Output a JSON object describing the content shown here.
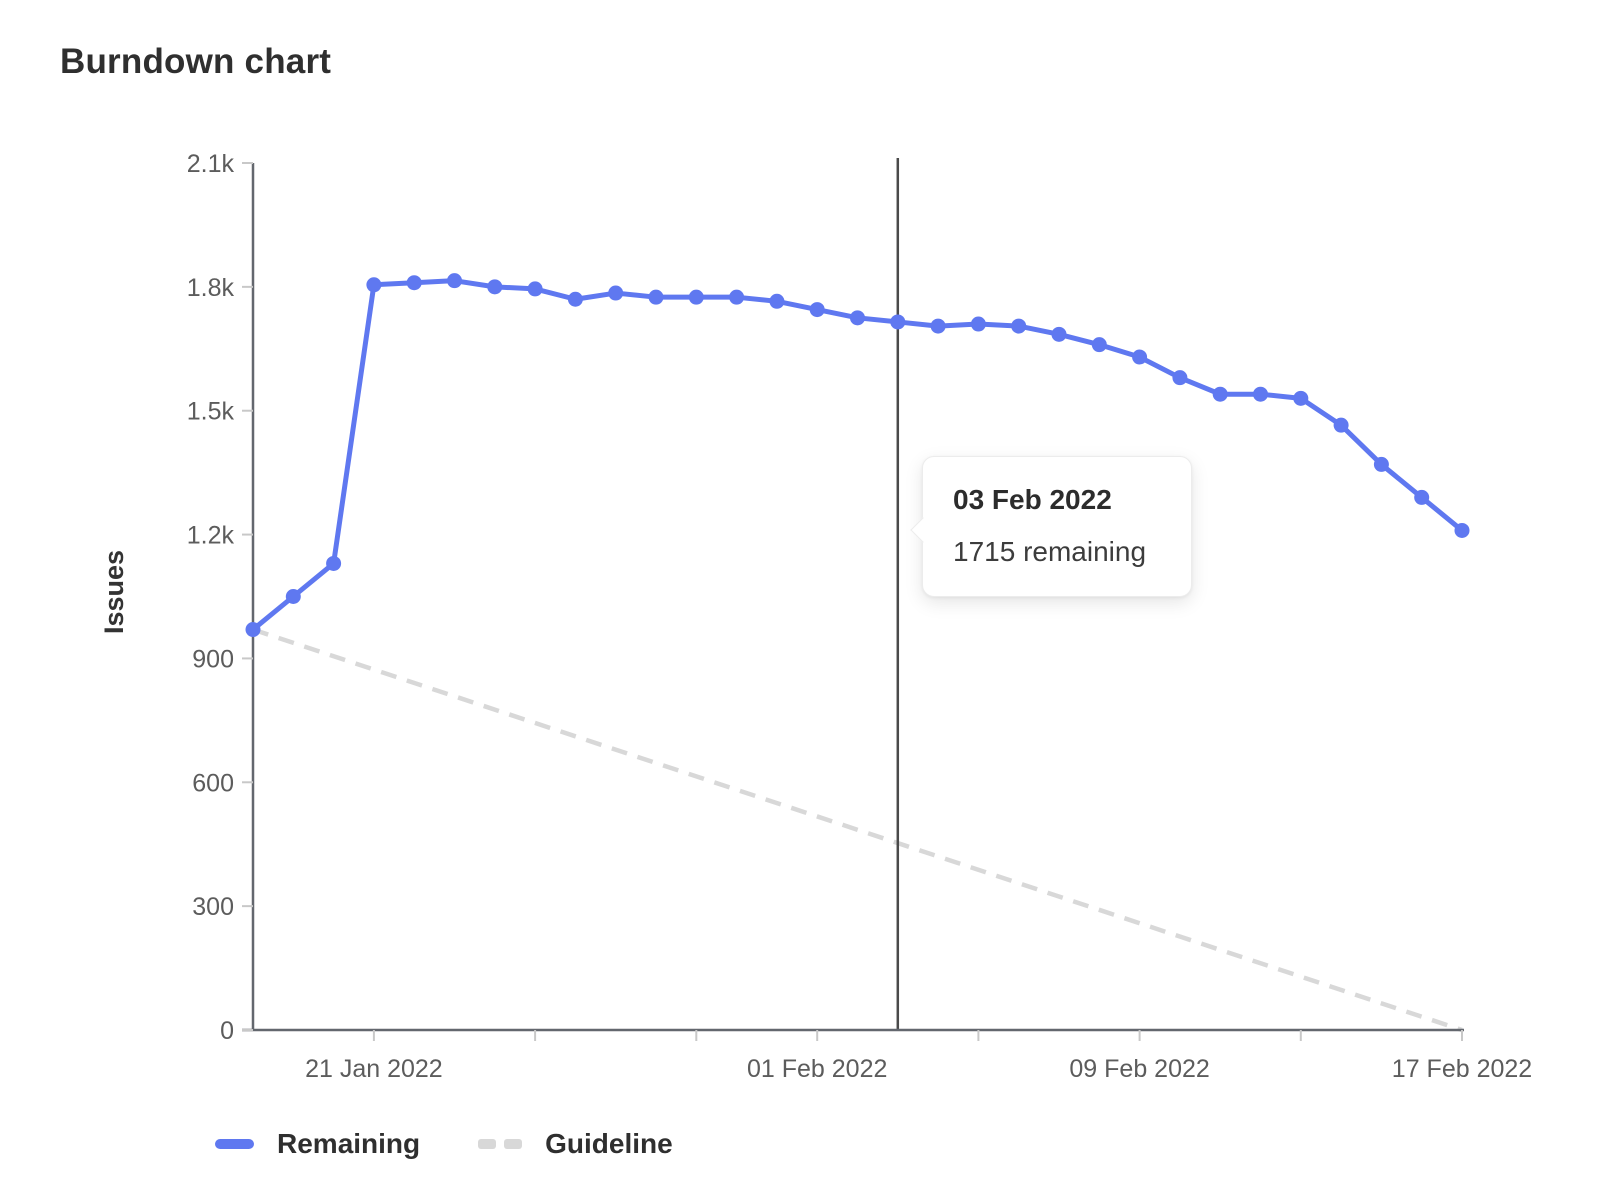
{
  "title": "Burndown chart",
  "tooltip": {
    "date": "03 Feb 2022",
    "text": "1715 remaining"
  },
  "legend": {
    "items": [
      {
        "label": "Remaining",
        "style": "solid"
      },
      {
        "label": "Guideline",
        "style": "dashed"
      }
    ]
  },
  "colors": {
    "remaining": "#5f78f0",
    "guideline": "#d8d8d8",
    "axis_line": "#63676e",
    "tick_mark": "#c8c8c8",
    "tick_label": "#5c5c5c",
    "marker_line": "#4a4a4a",
    "text": "#2f2f2f"
  },
  "chart_data": {
    "type": "line",
    "title": "Burndown chart",
    "xlabel": "",
    "ylabel": "Issues",
    "ylim": [
      0,
      2100
    ],
    "grid": false,
    "legend_position": "bottom-left",
    "x": [
      "18 Jan 2022",
      "19 Jan 2022",
      "20 Jan 2022",
      "21 Jan 2022",
      "22 Jan 2022",
      "23 Jan 2022",
      "24 Jan 2022",
      "25 Jan 2022",
      "26 Jan 2022",
      "27 Jan 2022",
      "28 Jan 2022",
      "29 Jan 2022",
      "30 Jan 2022",
      "31 Jan 2022",
      "01 Feb 2022",
      "02 Feb 2022",
      "03 Feb 2022",
      "04 Feb 2022",
      "05 Feb 2022",
      "06 Feb 2022",
      "07 Feb 2022",
      "08 Feb 2022",
      "09 Feb 2022",
      "10 Feb 2022",
      "11 Feb 2022",
      "12 Feb 2022",
      "13 Feb 2022",
      "14 Feb 2022",
      "15 Feb 2022",
      "16 Feb 2022",
      "17 Feb 2022"
    ],
    "series": [
      {
        "name": "Remaining",
        "style": "solid",
        "values": [
          970,
          1050,
          1130,
          1805,
          1810,
          1815,
          1800,
          1795,
          1770,
          1785,
          1775,
          1775,
          1775,
          1765,
          1745,
          1725,
          1715,
          1705,
          1710,
          1705,
          1685,
          1660,
          1630,
          1580,
          1540,
          1540,
          1530,
          1465,
          1370,
          1290,
          1210
        ]
      },
      {
        "name": "Guideline",
        "style": "dashed",
        "point_indices": [
          0,
          30
        ],
        "values": [
          970,
          0
        ]
      }
    ],
    "y_ticks": [
      {
        "value": 0,
        "label": "0"
      },
      {
        "value": 300,
        "label": "300"
      },
      {
        "value": 600,
        "label": "600"
      },
      {
        "value": 900,
        "label": "900"
      },
      {
        "value": 1200,
        "label": "1.2k"
      },
      {
        "value": 1500,
        "label": "1.5k"
      },
      {
        "value": 1800,
        "label": "1.8k"
      },
      {
        "value": 2100,
        "label": "2.1k"
      }
    ],
    "x_ticks": [
      {
        "index": 3,
        "label": "21 Jan 2022"
      },
      {
        "index": 7,
        "label": ""
      },
      {
        "index": 11,
        "label": ""
      },
      {
        "index": 14,
        "label": "01 Feb 2022"
      },
      {
        "index": 18,
        "label": ""
      },
      {
        "index": 22,
        "label": "09 Feb 2022"
      },
      {
        "index": 26,
        "label": ""
      },
      {
        "index": 30,
        "label": "17 Feb 2022"
      }
    ],
    "marker": {
      "index": 16,
      "date": "03 Feb 2022",
      "value": 1715
    }
  }
}
